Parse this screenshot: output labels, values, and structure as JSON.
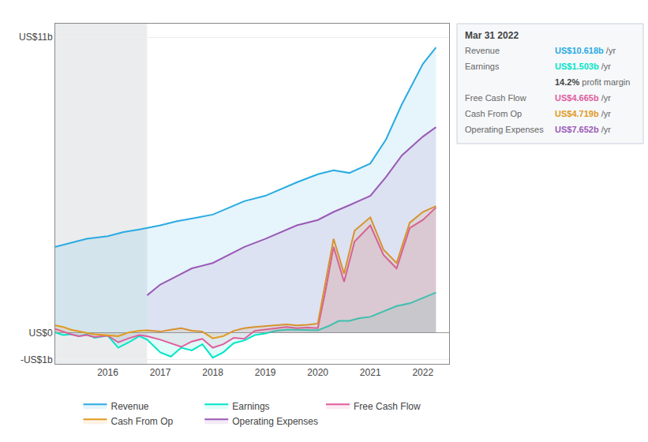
{
  "chart_data": {
    "type": "area",
    "xlim": [
      2015.0,
      2022.5
    ],
    "ylim": [
      -1.15,
      11.5
    ],
    "xticks": [
      2016,
      2017,
      2018,
      2019,
      2020,
      2021,
      2022
    ],
    "yticks": [
      {
        "value": -1,
        "label": "-US$1b"
      },
      {
        "value": 0,
        "label": "US$0"
      },
      {
        "value": 11,
        "label": "US$11b"
      }
    ],
    "grid": "y",
    "legend": "bottom",
    "shaded_x": [
      2015.0,
      2016.75
    ],
    "series": [
      {
        "name": "Revenue",
        "color": "#29abe2",
        "x": [
          2015.0,
          2015.3,
          2015.6,
          2016.0,
          2016.3,
          2016.6,
          2017.0,
          2017.3,
          2017.6,
          2018.0,
          2018.3,
          2018.6,
          2019.0,
          2019.3,
          2019.6,
          2020.0,
          2020.3,
          2020.6,
          2021.0,
          2021.3,
          2021.6,
          2022.0,
          2022.25
        ],
        "values": [
          3.2,
          3.35,
          3.5,
          3.6,
          3.75,
          3.85,
          4.0,
          4.15,
          4.25,
          4.4,
          4.65,
          4.9,
          5.1,
          5.35,
          5.6,
          5.9,
          6.05,
          5.95,
          6.3,
          7.2,
          8.5,
          10.0,
          10.618
        ]
      },
      {
        "name": "Earnings",
        "color": "#00e5c8",
        "x": [
          2015.0,
          2015.15,
          2015.3,
          2015.45,
          2015.6,
          2015.75,
          2016.0,
          2016.2,
          2016.4,
          2016.6,
          2016.75,
          2017.0,
          2017.2,
          2017.4,
          2017.6,
          2017.8,
          2018.0,
          2018.2,
          2018.4,
          2018.6,
          2018.8,
          2019.0,
          2019.2,
          2019.4,
          2019.6,
          2019.8,
          2020.0,
          2020.2,
          2020.4,
          2020.6,
          2020.8,
          2021.0,
          2021.25,
          2021.5,
          2021.75,
          2022.0,
          2022.25
        ],
        "values": [
          0.02,
          -0.08,
          -0.05,
          -0.12,
          -0.05,
          -0.18,
          -0.1,
          -0.55,
          -0.35,
          -0.12,
          -0.25,
          -0.72,
          -0.88,
          -0.55,
          -0.65,
          -0.42,
          -0.92,
          -0.72,
          -0.38,
          -0.28,
          -0.08,
          -0.02,
          0.08,
          0.12,
          0.12,
          0.1,
          0.1,
          0.25,
          0.45,
          0.45,
          0.55,
          0.6,
          0.8,
          1.0,
          1.1,
          1.3,
          1.503
        ]
      },
      {
        "name": "Free Cash Flow",
        "color": "#e05c9e",
        "x": [
          2015.0,
          2015.15,
          2015.3,
          2015.45,
          2015.6,
          2015.75,
          2016.0,
          2016.2,
          2016.4,
          2016.6,
          2016.75,
          2017.0,
          2017.2,
          2017.4,
          2017.6,
          2017.8,
          2018.0,
          2018.2,
          2018.4,
          2018.6,
          2018.8,
          2019.0,
          2019.2,
          2019.4,
          2019.6,
          2019.8,
          2020.0,
          2020.15,
          2020.3,
          2020.5,
          2020.7,
          2021.0,
          2021.25,
          2021.5,
          2021.75,
          2022.0,
          2022.25
        ],
        "values": [
          0.15,
          0.05,
          -0.05,
          -0.12,
          -0.08,
          -0.15,
          -0.1,
          -0.35,
          -0.2,
          -0.08,
          -0.12,
          -0.25,
          -0.38,
          -0.52,
          -0.32,
          -0.22,
          -0.55,
          -0.42,
          -0.18,
          -0.22,
          0.08,
          0.12,
          0.18,
          0.22,
          0.18,
          0.2,
          0.18,
          1.6,
          3.2,
          1.9,
          3.4,
          4.0,
          2.9,
          2.4,
          3.9,
          4.2,
          4.665
        ]
      },
      {
        "name": "Cash From Op",
        "color": "#e09a1e",
        "x": [
          2015.0,
          2015.15,
          2015.3,
          2015.45,
          2015.6,
          2015.75,
          2016.0,
          2016.2,
          2016.4,
          2016.6,
          2016.75,
          2017.0,
          2017.2,
          2017.4,
          2017.6,
          2017.8,
          2018.0,
          2018.2,
          2018.4,
          2018.6,
          2018.8,
          2019.0,
          2019.2,
          2019.4,
          2019.6,
          2019.8,
          2020.0,
          2020.15,
          2020.3,
          2020.5,
          2020.7,
          2021.0,
          2021.25,
          2021.5,
          2021.75,
          2022.0,
          2022.25
        ],
        "values": [
          0.28,
          0.22,
          0.12,
          0.05,
          0.0,
          -0.05,
          -0.08,
          -0.12,
          0.02,
          0.08,
          0.1,
          0.05,
          0.12,
          0.18,
          0.08,
          0.05,
          -0.2,
          -0.12,
          0.08,
          0.18,
          0.22,
          0.25,
          0.28,
          0.32,
          0.28,
          0.3,
          0.35,
          1.9,
          3.5,
          2.2,
          3.8,
          4.3,
          3.1,
          2.6,
          4.1,
          4.5,
          4.719
        ]
      },
      {
        "name": "Operating Expenses",
        "color": "#9b59b6",
        "x": [
          2016.75,
          2017.0,
          2017.3,
          2017.6,
          2018.0,
          2018.3,
          2018.6,
          2019.0,
          2019.3,
          2019.6,
          2020.0,
          2020.3,
          2020.6,
          2021.0,
          2021.3,
          2021.6,
          2022.0,
          2022.25
        ],
        "values": [
          1.4,
          1.8,
          2.1,
          2.4,
          2.6,
          2.9,
          3.2,
          3.5,
          3.75,
          4.0,
          4.2,
          4.5,
          4.75,
          5.1,
          5.8,
          6.6,
          7.3,
          7.652
        ]
      }
    ],
    "annotations": [
      {
        "text": "Mar 31 2022"
      },
      {
        "label": "Revenue",
        "value": "US$10.618b",
        "suffix": " /yr",
        "color": "#29abe2"
      },
      {
        "label": "Earnings",
        "value": "US$1.503b",
        "suffix": " /yr",
        "color": "#00e5c8"
      },
      {
        "value": "14.2%",
        "suffix": " profit margin"
      },
      {
        "label": "Free Cash Flow",
        "value": "US$4.665b",
        "suffix": " /yr",
        "color": "#e05c9e"
      },
      {
        "label": "Cash From Op",
        "value": "US$4.719b",
        "suffix": " /yr",
        "color": "#e09a1e"
      },
      {
        "label": "Operating Expenses",
        "value": "US$7.652b",
        "suffix": " /yr",
        "color": "#9b59b6"
      }
    ]
  }
}
